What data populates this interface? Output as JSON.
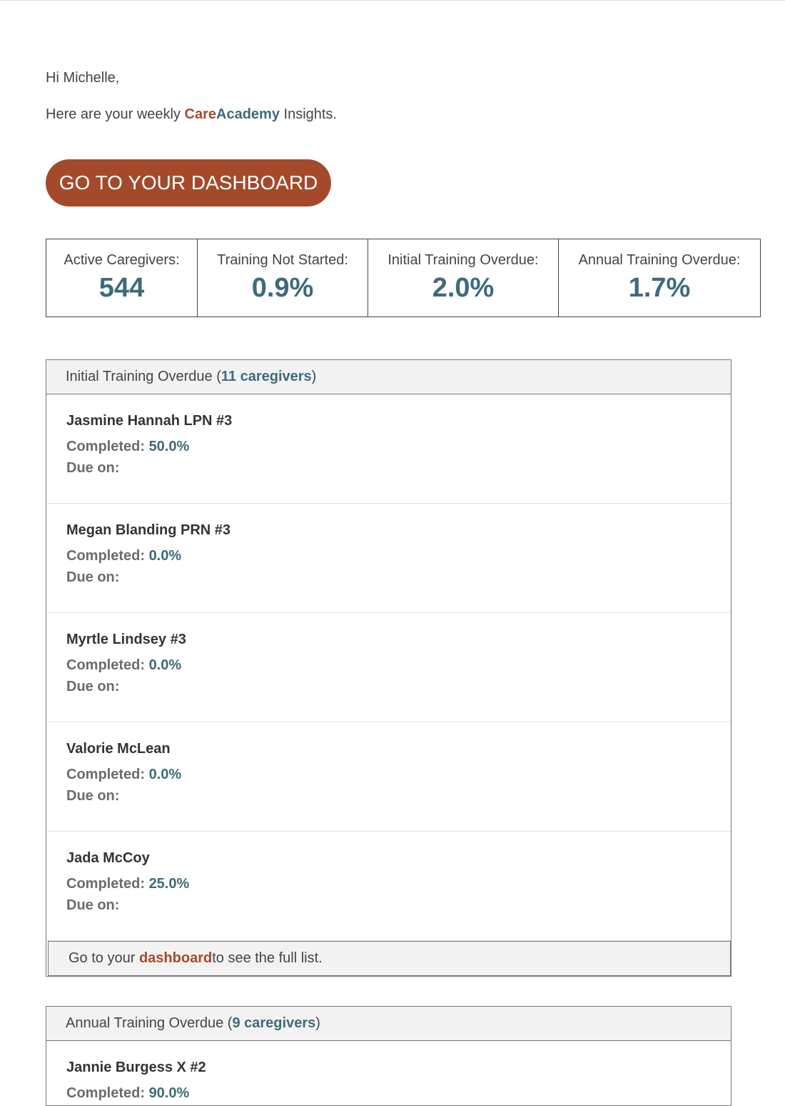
{
  "greeting": "Hi Michelle,",
  "intro": {
    "before": "Here are your weekly ",
    "brand_part1": "Care",
    "brand_part2": "Academy",
    "after": " Insights."
  },
  "cta_label": "GO TO YOUR DASHBOARD",
  "colors": {
    "brand_orange": "#a44a2b",
    "brand_teal": "#3d6b7a"
  },
  "stats": [
    {
      "label": "Active Caregivers:",
      "value": "544"
    },
    {
      "label": "Training Not Started:",
      "value": "0.9%"
    },
    {
      "label": "Initial Training Overdue:",
      "value": "2.0%"
    },
    {
      "label": "Annual Training Overdue:",
      "value": "1.7%"
    }
  ],
  "initial": {
    "title": "Initial Training Overdue (",
    "count": "11 caregivers",
    "close": ")",
    "completed_label": "Completed: ",
    "due_label": "Due on:",
    "items": [
      {
        "name": "Jasmine Hannah LPN #3",
        "completed": "50.0%"
      },
      {
        "name": "Megan Blanding PRN #3",
        "completed": "0.0%"
      },
      {
        "name": "Myrtle Lindsey #3",
        "completed": "0.0%"
      },
      {
        "name": "Valorie McLean",
        "completed": "0.0%"
      },
      {
        "name": "Jada McCoy",
        "completed": "25.0%"
      }
    ],
    "footer": {
      "before": "Go to your ",
      "link": "dashboard",
      "after": " to see the full list."
    }
  },
  "annual": {
    "title": "Annual Training Overdue (",
    "count": "9 caregivers",
    "close": ")",
    "completed_label": "Completed: ",
    "items": [
      {
        "name": "Jannie Burgess X #2",
        "completed": "90.0%"
      }
    ]
  }
}
